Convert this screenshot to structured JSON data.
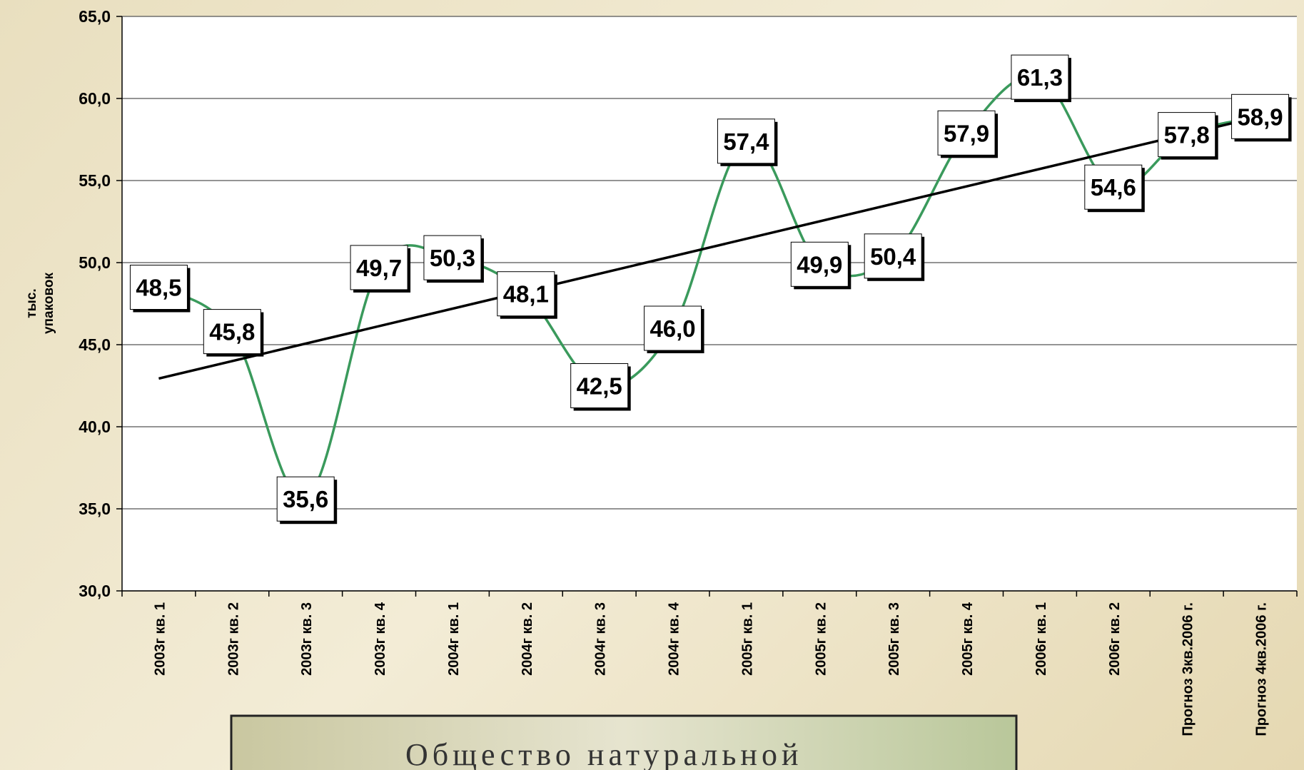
{
  "chart_data": {
    "type": "line",
    "y_label": [
      "тыс.",
      "упаковок"
    ],
    "categories": [
      "2003г кв. 1",
      "2003г кв. 2",
      "2003г кв. 3",
      "2003г кв. 4",
      "2004г кв. 1",
      "2004г кв. 2",
      "2004г кв. 3",
      "2004г кв. 4",
      "2005г кв. 1",
      "2005г кв. 2",
      "2005г кв. 3",
      "2005г кв. 4",
      "2006г кв. 1",
      "2006г кв. 2",
      "Прогноз 3кв.2006 г.",
      "Прогноз 4кв.2006 г."
    ],
    "values": [
      48.5,
      45.8,
      35.6,
      49.7,
      50.3,
      48.1,
      42.5,
      46.0,
      57.4,
      49.9,
      50.4,
      57.9,
      61.3,
      54.6,
      57.8,
      58.9
    ],
    "value_labels": [
      "48,5",
      "45,8",
      "35,6",
      "49,7",
      "50,3",
      "48,1",
      "42,5",
      "46,0",
      "57,4",
      "49,9",
      "50,4",
      "57,9",
      "61,3",
      "54,6",
      "57,8",
      "58,9"
    ],
    "color": "#3a9a5c",
    "trendline": true,
    "trend_color": "#000000",
    "ylim": [
      30,
      65
    ],
    "yticks": [
      {
        "value": 30,
        "label": "30,0"
      },
      {
        "value": 35,
        "label": "35,0"
      },
      {
        "value": 40,
        "label": "40,0"
      },
      {
        "value": 45,
        "label": "45,0"
      },
      {
        "value": 50,
        "label": "50,0"
      },
      {
        "value": 55,
        "label": "55,0"
      },
      {
        "value": 60,
        "label": "60,0"
      },
      {
        "value": 65,
        "label": "65,0"
      }
    ],
    "grid": true
  },
  "banner": {
    "text": "Общество натуральной"
  }
}
